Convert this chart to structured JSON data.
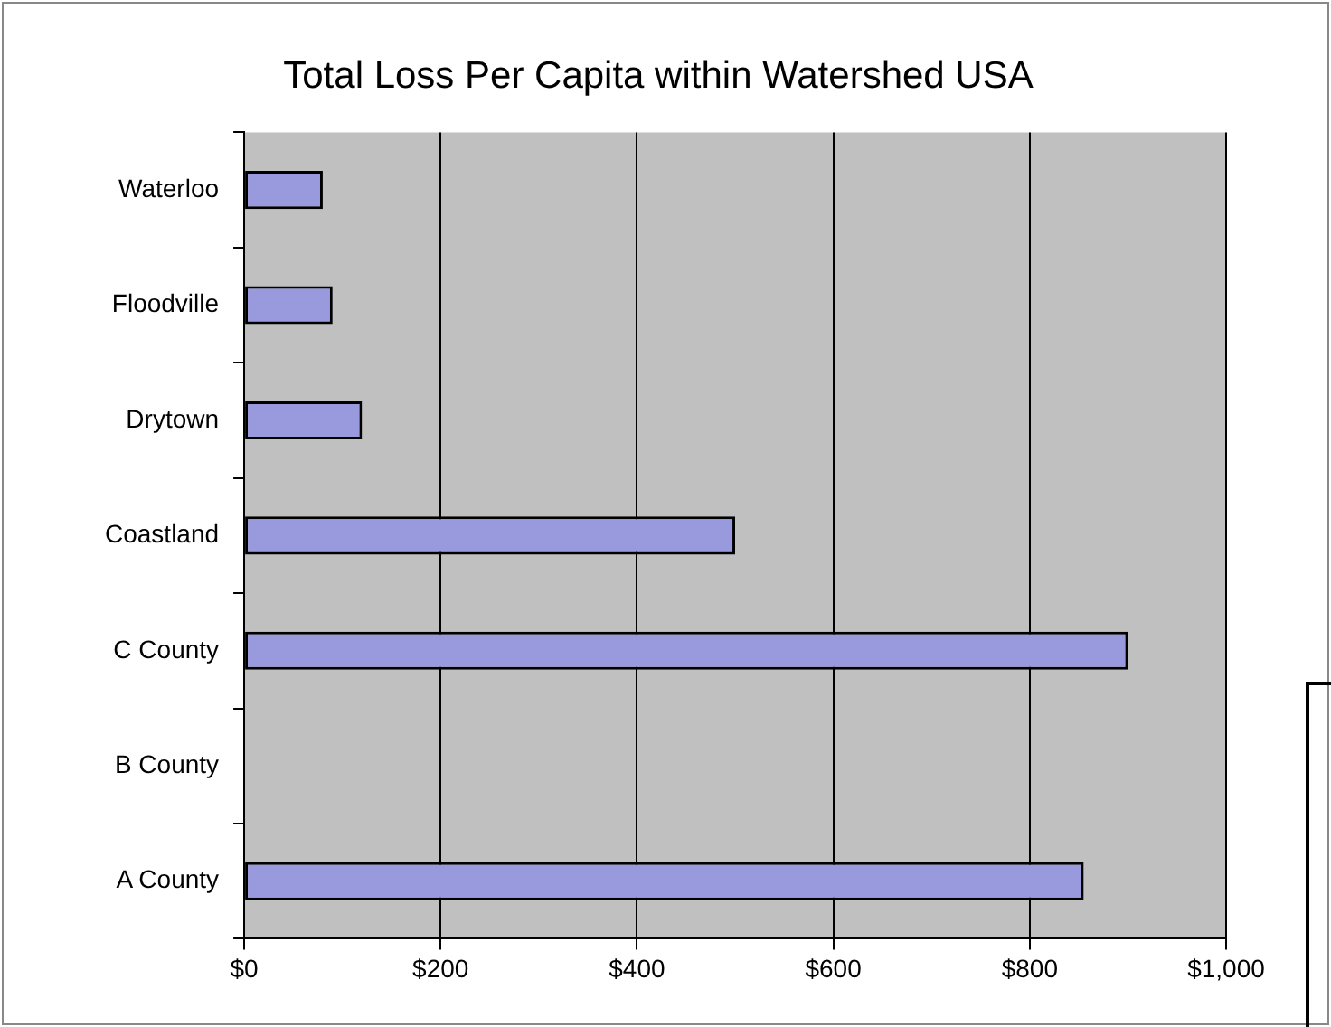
{
  "chart_data": {
    "type": "bar",
    "orientation": "horizontal",
    "title": "Total Loss Per Capita within Watershed USA",
    "categories": [
      "Waterloo",
      "Floodville",
      "Drytown",
      "Coastland",
      "C County",
      "B County",
      "A County"
    ],
    "values": [
      80,
      90,
      120,
      500,
      900,
      0,
      855
    ],
    "color": "#9999dd",
    "xlim": [
      0,
      1000
    ],
    "xticks": [
      {
        "value": 0,
        "label": "$0"
      },
      {
        "value": 200,
        "label": "$200"
      },
      {
        "value": 400,
        "label": "$400"
      },
      {
        "value": 600,
        "label": "$600"
      },
      {
        "value": 800,
        "label": "$800"
      },
      {
        "value": 1000,
        "label": "$1,000"
      }
    ],
    "grid": "x",
    "legend": false
  }
}
